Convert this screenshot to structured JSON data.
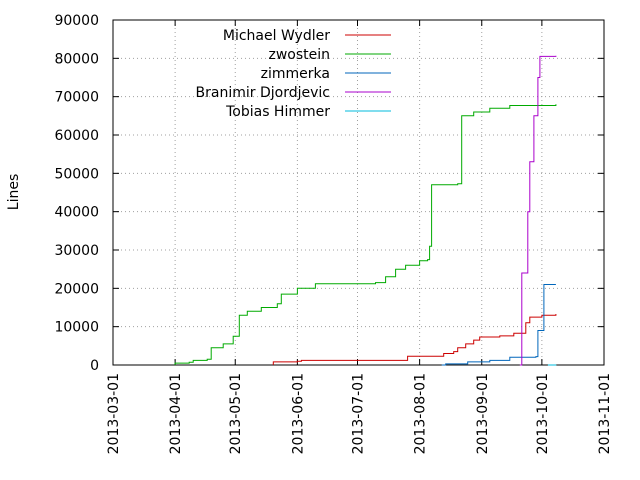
{
  "chart_data": {
    "type": "line",
    "title": "",
    "xlabel": "",
    "ylabel": "Lines",
    "xlim": [
      "2013-03-01",
      "2013-11-01"
    ],
    "ylim": [
      0,
      90000
    ],
    "x_tick_labels": [
      "2013-03-01",
      "2013-04-01",
      "2013-05-01",
      "2013-06-01",
      "2013-07-01",
      "2013-08-01",
      "2013-09-01",
      "2013-10-01",
      "2013-11-01"
    ],
    "y_tick_labels": [
      "0",
      "10000",
      "20000",
      "30000",
      "40000",
      "50000",
      "60000",
      "70000",
      "80000",
      "90000"
    ],
    "grid": true,
    "legend_position": "top-left",
    "series": [
      {
        "name": "Michael Wydler",
        "color": "#cc0000",
        "points": [
          [
            "2013-05-20",
            0
          ],
          [
            "2013-05-20",
            800
          ],
          [
            "2013-06-01",
            1000
          ],
          [
            "2013-06-03",
            1200
          ],
          [
            "2013-07-25",
            1200
          ],
          [
            "2013-07-26",
            2300
          ],
          [
            "2013-08-12",
            2300
          ],
          [
            "2013-08-13",
            3000
          ],
          [
            "2013-08-18",
            3500
          ],
          [
            "2013-08-20",
            4500
          ],
          [
            "2013-08-24",
            5500
          ],
          [
            "2013-08-28",
            6500
          ],
          [
            "2013-08-31",
            7300
          ],
          [
            "2013-09-10",
            7600
          ],
          [
            "2013-09-17",
            8300
          ],
          [
            "2013-09-22",
            8300
          ],
          [
            "2013-09-23",
            11000
          ],
          [
            "2013-09-25",
            12500
          ],
          [
            "2013-10-01",
            13000
          ],
          [
            "2013-10-06",
            13000
          ],
          [
            "2013-10-08",
            13300
          ]
        ]
      },
      {
        "name": "zwostein",
        "color": "#00aa00",
        "points": [
          [
            "2013-04-01",
            0
          ],
          [
            "2013-04-01",
            500
          ],
          [
            "2013-04-08",
            700
          ],
          [
            "2013-04-10",
            1200
          ],
          [
            "2013-04-17",
            1500
          ],
          [
            "2013-04-19",
            4500
          ],
          [
            "2013-04-25",
            5500
          ],
          [
            "2013-04-30",
            7500
          ],
          [
            "2013-05-03",
            13000
          ],
          [
            "2013-05-07",
            14000
          ],
          [
            "2013-05-14",
            15000
          ],
          [
            "2013-05-22",
            16000
          ],
          [
            "2013-05-24",
            18500
          ],
          [
            "2013-06-01",
            20000
          ],
          [
            "2013-06-10",
            21200
          ],
          [
            "2013-07-10",
            21500
          ],
          [
            "2013-07-15",
            23000
          ],
          [
            "2013-07-20",
            25000
          ],
          [
            "2013-07-25",
            26000
          ],
          [
            "2013-08-01",
            27200
          ],
          [
            "2013-08-05",
            27500
          ],
          [
            "2013-08-06",
            31000
          ],
          [
            "2013-08-07",
            47000
          ],
          [
            "2013-08-20",
            47300
          ],
          [
            "2013-08-22",
            65000
          ],
          [
            "2013-08-28",
            66000
          ],
          [
            "2013-09-05",
            67000
          ],
          [
            "2013-09-15",
            67700
          ],
          [
            "2013-10-08",
            68000
          ]
        ]
      },
      {
        "name": "zimmerka",
        "color": "#0066bb",
        "points": [
          [
            "2013-08-12",
            0
          ],
          [
            "2013-08-14",
            300
          ],
          [
            "2013-08-25",
            800
          ],
          [
            "2013-09-05",
            1200
          ],
          [
            "2013-09-15",
            2000
          ],
          [
            "2013-09-28",
            2200
          ],
          [
            "2013-09-29",
            9000
          ],
          [
            "2013-10-01",
            9000
          ],
          [
            "2013-10-02",
            21000
          ],
          [
            "2013-10-08",
            21000
          ]
        ]
      },
      {
        "name": "Branimir Djordjevic",
        "color": "#aa00cc",
        "points": [
          [
            "2013-09-20",
            0
          ],
          [
            "2013-09-21",
            24000
          ],
          [
            "2013-09-23",
            24000
          ],
          [
            "2013-09-24",
            40000
          ],
          [
            "2013-09-25",
            53000
          ],
          [
            "2013-09-27",
            65000
          ],
          [
            "2013-09-29",
            75000
          ],
          [
            "2013-09-30",
            80500
          ],
          [
            "2013-10-08",
            80700
          ]
        ]
      },
      {
        "name": "Tobias Himmer",
        "color": "#00bbdd",
        "points": [
          [
            "2013-10-04",
            0
          ],
          [
            "2013-10-08",
            100
          ]
        ]
      }
    ]
  }
}
